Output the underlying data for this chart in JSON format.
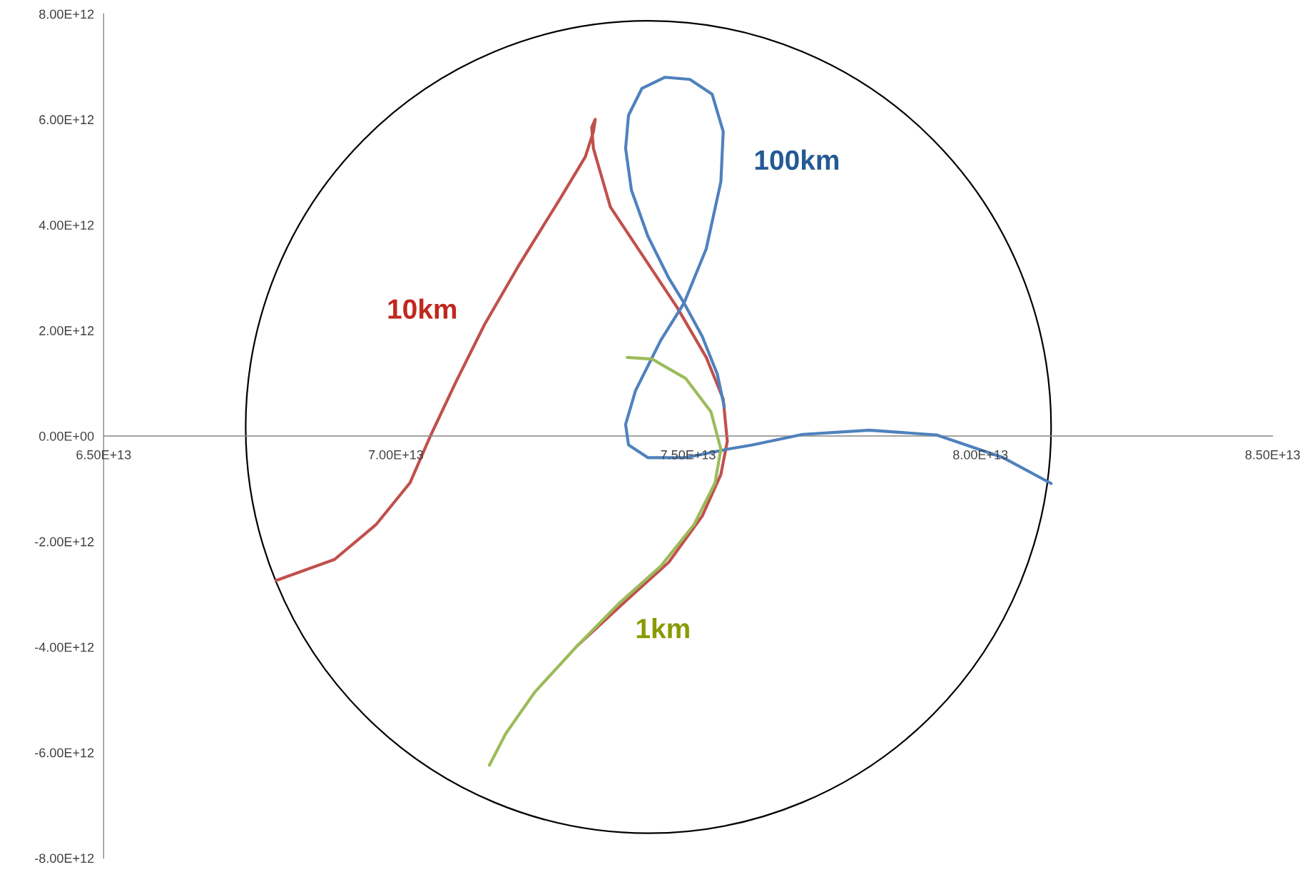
{
  "chart_data": {
    "type": "line",
    "xlim": [
      65000000000000.0,
      85000000000000.0
    ],
    "xticks": [
      {
        "value": 65000000000000.0,
        "label": "6.50E+13"
      },
      {
        "value": 70000000000000.0,
        "label": "7.00E+13"
      },
      {
        "value": 75000000000000.0,
        "label": "7.50E+13"
      },
      {
        "value": 80000000000000.0,
        "label": "8.00E+13"
      },
      {
        "value": 85000000000000.0,
        "label": "8.50E+13"
      }
    ],
    "ylim": [
      -8000000000000.0,
      8000000000000.0
    ],
    "yticks": [
      {
        "value": -8000000000000.0,
        "label": "-8.00E+12"
      },
      {
        "value": -6000000000000.0,
        "label": "-6.00E+12"
      },
      {
        "value": -4000000000000.0,
        "label": "-4.00E+12"
      },
      {
        "value": -2000000000000.0,
        "label": "-2.00E+12"
      },
      {
        "value": 0,
        "label": "0.00E+00"
      },
      {
        "value": 2000000000000.0,
        "label": "2.00E+12"
      },
      {
        "value": 4000000000000.0,
        "label": "4.00E+12"
      },
      {
        "value": 6000000000000.0,
        "label": "6.00E+12"
      },
      {
        "value": 8000000000000.0,
        "label": "8.00E+12"
      }
    ],
    "grid": false,
    "legend": false,
    "series": [
      {
        "color": "#c0504d",
        "x": [
          67950000000000.0,
          68950000000000.0,
          69660000000000.0,
          70240000000000.0,
          70590000000000.0,
          71020000000000.0,
          71520000000000.0,
          72100000000000.0,
          72810000000000.0,
          73240000000000.0,
          73380000000000.0,
          73410000000000.0,
          73350000000000.0,
          73380000000000.0,
          73670000000000.0,
          74240000000000.0,
          74810000000000.0,
          75310000000000.0,
          75600000000000.0,
          75670000000000.0,
          75560000000000.0,
          75240000000000.0,
          74670000000000.0,
          73960000000000.0,
          73100000000000.0
        ],
        "values": [
          -2740000000000.0,
          -2340000000000.0,
          -1680000000000.0,
          -890000000000.0,
          0.0,
          1010000000000.0,
          2120000000000.0,
          3230000000000.0,
          4500000000000.0,
          5290000000000.0,
          5770000000000.0,
          6000000000000.0,
          5850000000000.0,
          5450000000000.0,
          4340000000000.0,
          3390000000000.0,
          2440000000000.0,
          1490000000000.0,
          700000000000.0,
          -100000000000.0,
          -730000000000.0,
          -1520000000000.0,
          -2390000000000.0,
          -3100000000000.0,
          -3980000000000.0
        ]
      },
      {
        "color": "#4f81bd",
        "x": [
          81210000000000.0,
          80390000000000.0,
          79250000000000.0,
          78100000000000.0,
          76960000000000.0,
          76100000000000.0,
          75670000000000.0,
          74960000000000.0,
          74310000000000.0,
          73980000000000.0,
          73930000000000.0,
          74100000000000.0,
          74530000000000.0,
          74930000000000.0,
          75310000000000.0,
          75560000000000.0,
          75600000000000.0,
          75410000000000.0,
          75030000000000.0,
          74600000000000.0,
          74210000000000.0,
          73980000000000.0,
          73930000000000.0,
          74030000000000.0,
          74310000000000.0,
          74670000000000.0,
          74930000000000.0,
          75240000000000.0,
          75500000000000.0,
          75620000000000.0
        ],
        "values": [
          -900000000000.0,
          -410000000000.0,
          20000000000.0,
          110000000000.0,
          30000000000.0,
          -170000000000.0,
          -250000000000.0,
          -410000000000.0,
          -410000000000.0,
          -170000000000.0,
          220000000000.0,
          860000000000.0,
          1810000000000.0,
          2520000000000.0,
          3550000000000.0,
          4820000000000.0,
          5770000000000.0,
          6480000000000.0,
          6760000000000.0,
          6800000000000.0,
          6590000000000.0,
          6080000000000.0,
          5450000000000.0,
          4660000000000.0,
          3790000000000.0,
          2990000000000.0,
          2520000000000.0,
          1890000000000.0,
          1170000000000.0,
          540000000000.0
        ]
      },
      {
        "color": "#9bbb59",
        "x": [
          73960000000000.0,
          74380000000000.0,
          74960000000000.0,
          75390000000000.0,
          75560000000000.0,
          75460000000000.0,
          75100000000000.0,
          74530000000000.0,
          73810000000000.0,
          73100000000000.0,
          72380000000000.0,
          71880000000000.0,
          71600000000000.0
        ],
        "values": [
          1490000000000.0,
          1460000000000.0,
          1090000000000.0,
          460000000000.0,
          -250000000000.0,
          -890000000000.0,
          -1680000000000.0,
          -2470000000000.0,
          -3180000000000.0,
          -3980000000000.0,
          -4850000000000.0,
          -5640000000000.0,
          -6240000000000.0
        ]
      }
    ],
    "annotations": [
      "10km",
      "100km",
      "1km"
    ]
  }
}
